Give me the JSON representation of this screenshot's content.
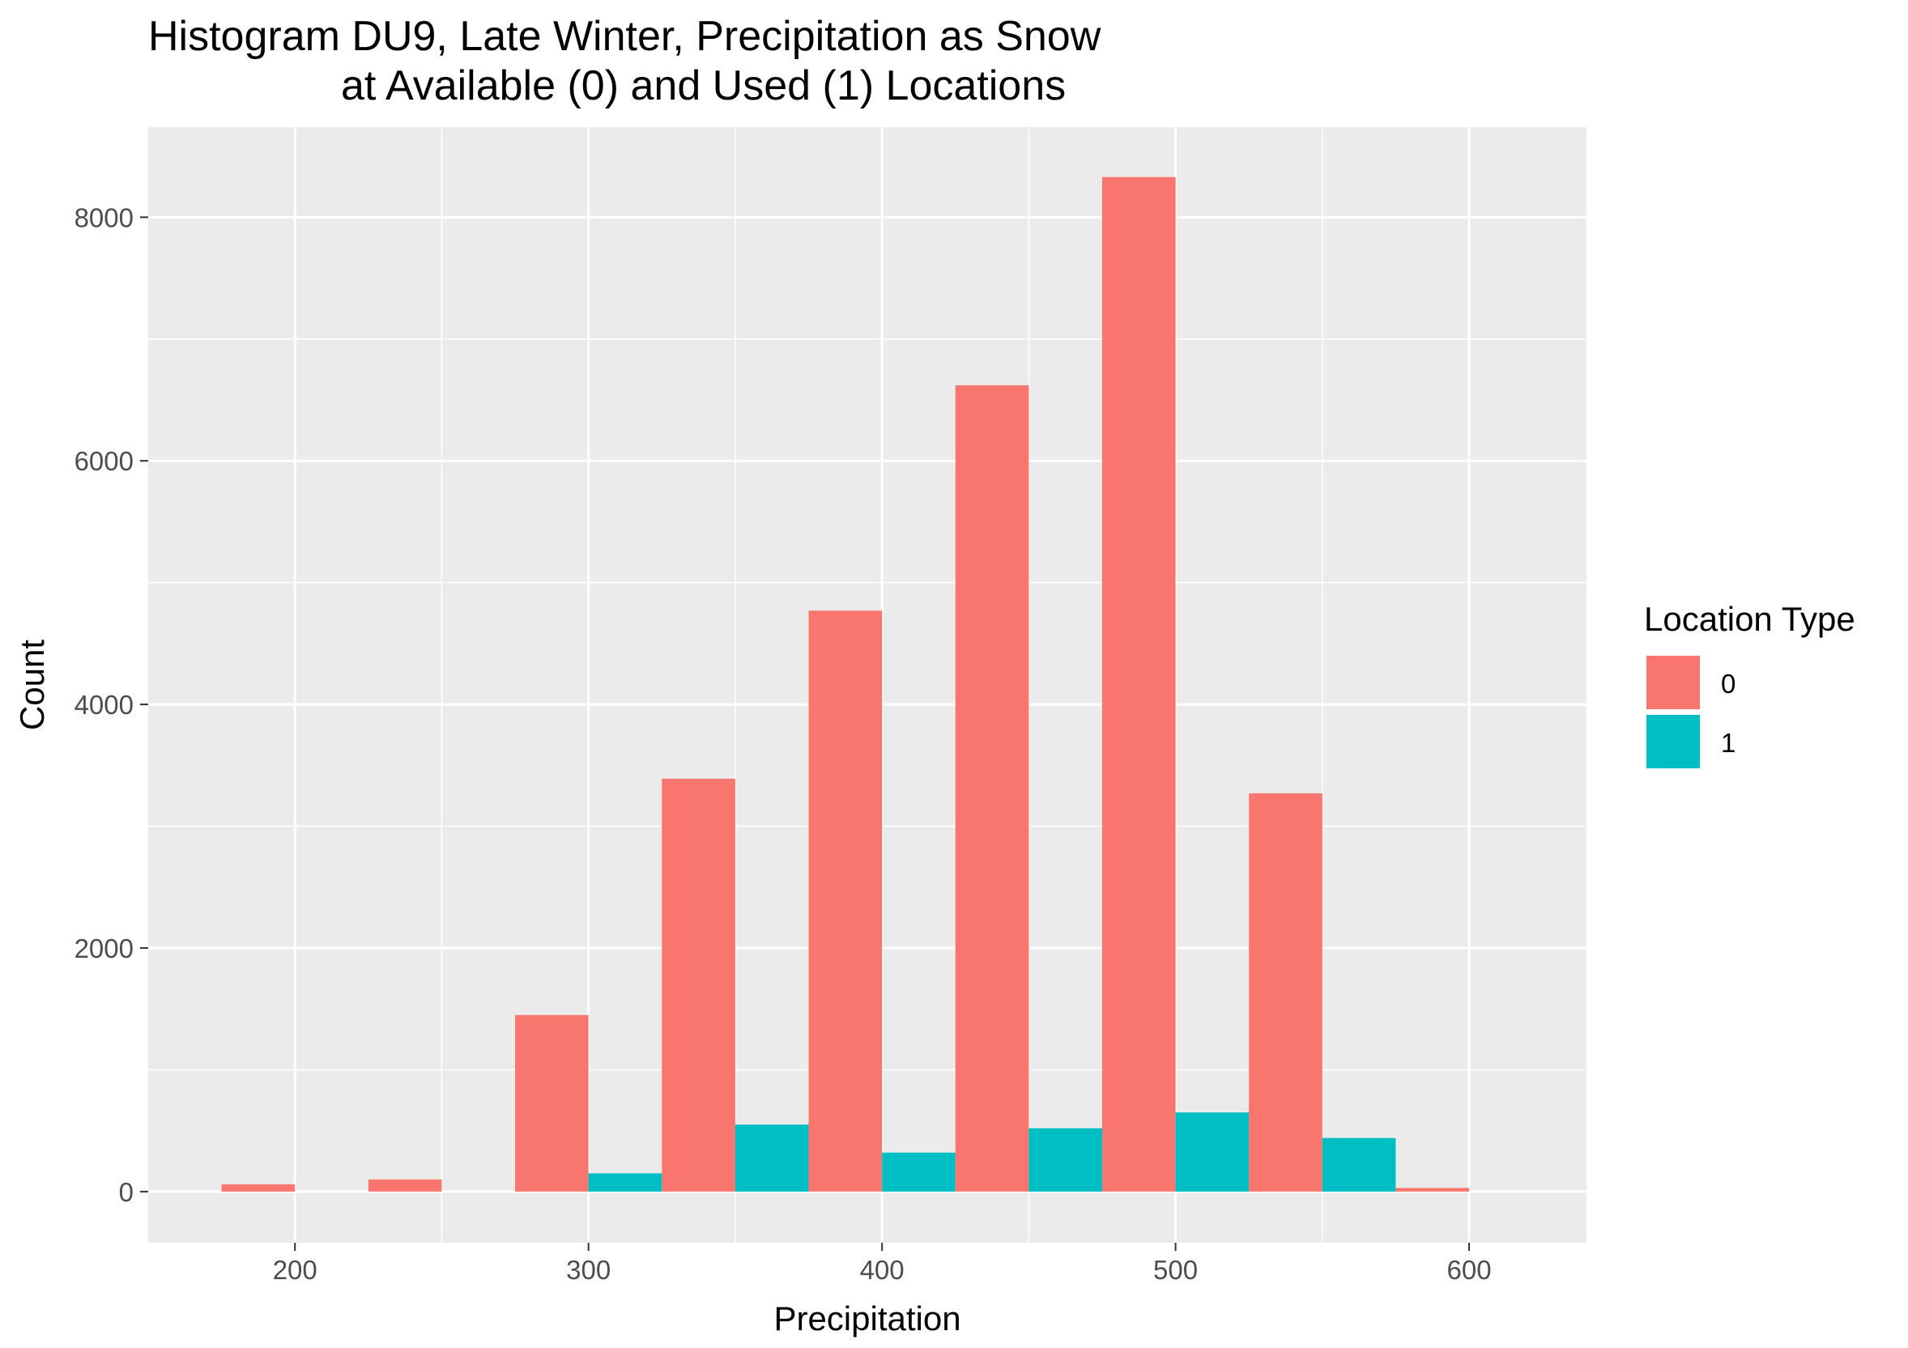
{
  "chart_data": {
    "type": "bar",
    "title_lines": [
      "Histogram DU9, Late Winter, Precipitation as Snow",
      "at Available (0) and Used (1) Locations"
    ],
    "xlabel": "Precipitation",
    "ylabel": "Count",
    "xlim": [
      150,
      640
    ],
    "ylim": [
      -420,
      8740
    ],
    "x_ticks": [
      "200",
      "300",
      "400",
      "500",
      "600"
    ],
    "x_tick_values": [
      200,
      300,
      400,
      500,
      600
    ],
    "y_ticks": [
      "0",
      "2000",
      "4000",
      "6000",
      "8000"
    ],
    "y_tick_values": [
      0,
      2000,
      4000,
      6000,
      8000
    ],
    "bin_centers": [
      200,
      250,
      300,
      350,
      400,
      450,
      500,
      550,
      600
    ],
    "series": [
      {
        "name": "0",
        "color": "#F8766D",
        "values": [
          60,
          100,
          1450,
          3390,
          4770,
          6620,
          8330,
          3270,
          30
        ]
      },
      {
        "name": "1",
        "color": "#00BFC4",
        "values": [
          0,
          0,
          150,
          550,
          320,
          520,
          650,
          440,
          0
        ]
      }
    ],
    "grid": true,
    "panel_background": "#EBEBEB",
    "legend": {
      "title": "Location Type",
      "position": "right"
    }
  }
}
